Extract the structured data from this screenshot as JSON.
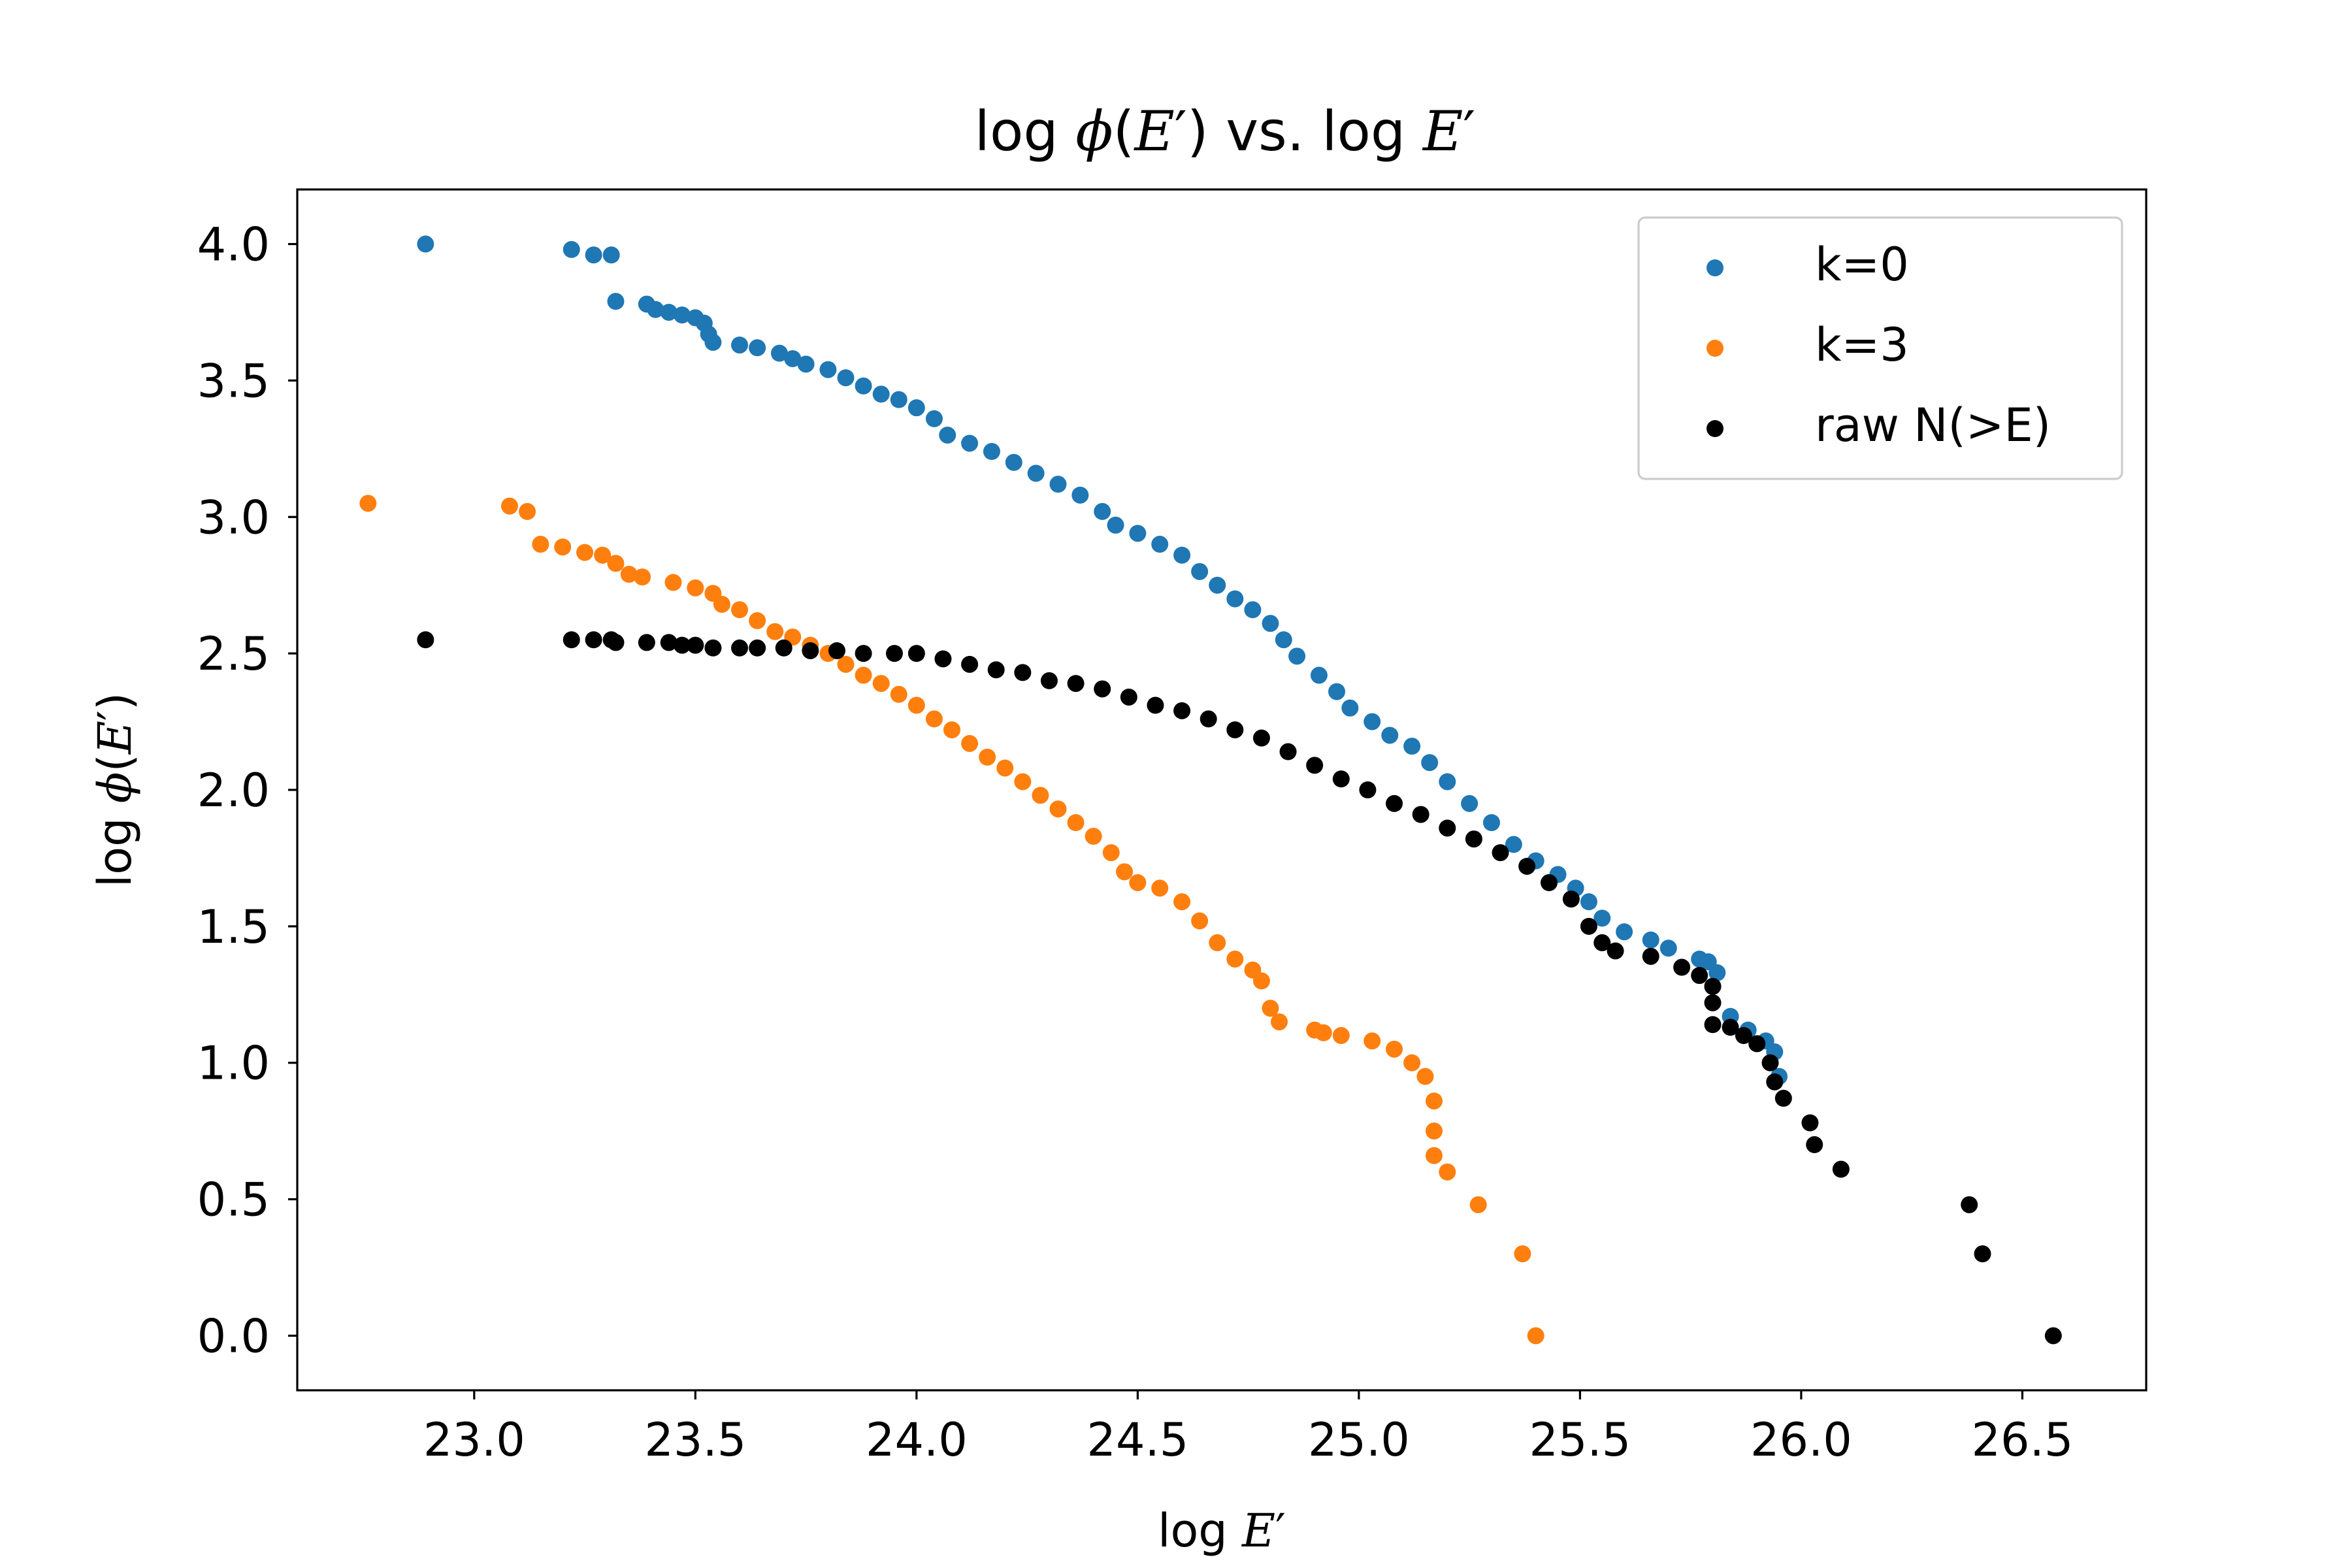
{
  "chart_data": {
    "type": "scatter",
    "title": "log ϕ(E′) vs. log E′",
    "title_parts": {
      "pre": "log ",
      "func": "ϕ",
      "open": "(",
      "var": "E",
      "prime": "′",
      "close": ")",
      "mid": " vs. log ",
      "var2": "E",
      "prime2": "′"
    },
    "xlabel": "log E′",
    "xlabel_parts": {
      "pre": "log ",
      "var": "E",
      "prime": "′"
    },
    "ylabel": "log ϕ(E′)",
    "ylabel_parts": {
      "pre": "log ",
      "func": "ϕ",
      "open": "(",
      "var": "E",
      "prime": "′",
      "close": ")"
    },
    "xlim": [
      22.6,
      26.78
    ],
    "ylim": [
      -0.2,
      4.2
    ],
    "xticks": [
      23.0,
      23.5,
      24.0,
      24.5,
      25.0,
      25.5,
      26.0,
      26.5
    ],
    "xtick_labels": [
      "23.0",
      "23.5",
      "24.0",
      "24.5",
      "25.0",
      "25.5",
      "26.0",
      "26.5"
    ],
    "yticks": [
      0.0,
      0.5,
      1.0,
      1.5,
      2.0,
      2.5,
      3.0,
      3.5,
      4.0
    ],
    "ytick_labels": [
      "0.0",
      "0.5",
      "1.0",
      "1.5",
      "2.0",
      "2.5",
      "3.0",
      "3.5",
      "4.0"
    ],
    "grid": false,
    "legend_position": "top-right",
    "series": [
      {
        "name": "k=0",
        "color": "#1f77b4",
        "points": [
          [
            22.89,
            4.0
          ],
          [
            23.22,
            3.98
          ],
          [
            23.27,
            3.96
          ],
          [
            23.31,
            3.96
          ],
          [
            23.32,
            3.79
          ],
          [
            23.39,
            3.78
          ],
          [
            23.41,
            3.76
          ],
          [
            23.44,
            3.75
          ],
          [
            23.47,
            3.74
          ],
          [
            23.5,
            3.73
          ],
          [
            23.52,
            3.71
          ],
          [
            23.53,
            3.67
          ],
          [
            23.54,
            3.64
          ],
          [
            23.6,
            3.63
          ],
          [
            23.64,
            3.62
          ],
          [
            23.69,
            3.6
          ],
          [
            23.72,
            3.58
          ],
          [
            23.75,
            3.56
          ],
          [
            23.8,
            3.54
          ],
          [
            23.84,
            3.51
          ],
          [
            23.88,
            3.48
          ],
          [
            23.92,
            3.45
          ],
          [
            23.96,
            3.43
          ],
          [
            24.0,
            3.4
          ],
          [
            24.04,
            3.36
          ],
          [
            24.07,
            3.3
          ],
          [
            24.12,
            3.27
          ],
          [
            24.17,
            3.24
          ],
          [
            24.22,
            3.2
          ],
          [
            24.27,
            3.16
          ],
          [
            24.32,
            3.12
          ],
          [
            24.37,
            3.08
          ],
          [
            24.42,
            3.02
          ],
          [
            24.45,
            2.97
          ],
          [
            24.5,
            2.94
          ],
          [
            24.55,
            2.9
          ],
          [
            24.6,
            2.86
          ],
          [
            24.64,
            2.8
          ],
          [
            24.68,
            2.75
          ],
          [
            24.72,
            2.7
          ],
          [
            24.76,
            2.66
          ],
          [
            24.8,
            2.61
          ],
          [
            24.83,
            2.55
          ],
          [
            24.86,
            2.49
          ],
          [
            24.91,
            2.42
          ],
          [
            24.95,
            2.36
          ],
          [
            24.98,
            2.3
          ],
          [
            25.03,
            2.25
          ],
          [
            25.07,
            2.2
          ],
          [
            25.12,
            2.16
          ],
          [
            25.16,
            2.1
          ],
          [
            25.2,
            2.03
          ],
          [
            25.25,
            1.95
          ],
          [
            25.3,
            1.88
          ],
          [
            25.35,
            1.8
          ],
          [
            25.4,
            1.74
          ],
          [
            25.45,
            1.69
          ],
          [
            25.49,
            1.64
          ],
          [
            25.52,
            1.59
          ],
          [
            25.55,
            1.53
          ],
          [
            25.6,
            1.48
          ],
          [
            25.66,
            1.45
          ],
          [
            25.7,
            1.42
          ],
          [
            25.77,
            1.38
          ],
          [
            25.79,
            1.37
          ],
          [
            25.81,
            1.33
          ],
          [
            25.8,
            1.28
          ],
          [
            25.84,
            1.17
          ],
          [
            25.88,
            1.12
          ],
          [
            25.92,
            1.08
          ],
          [
            25.94,
            1.04
          ],
          [
            25.95,
            0.95
          ]
        ]
      },
      {
        "name": "k=3",
        "color": "#ff7f0e",
        "points": [
          [
            22.76,
            3.05
          ],
          [
            23.08,
            3.04
          ],
          [
            23.12,
            3.02
          ],
          [
            23.15,
            2.9
          ],
          [
            23.2,
            2.89
          ],
          [
            23.25,
            2.87
          ],
          [
            23.29,
            2.86
          ],
          [
            23.32,
            2.83
          ],
          [
            23.35,
            2.79
          ],
          [
            23.38,
            2.78
          ],
          [
            23.45,
            2.76
          ],
          [
            23.5,
            2.74
          ],
          [
            23.54,
            2.72
          ],
          [
            23.56,
            2.68
          ],
          [
            23.6,
            2.66
          ],
          [
            23.64,
            2.62
          ],
          [
            23.68,
            2.58
          ],
          [
            23.72,
            2.56
          ],
          [
            23.76,
            2.53
          ],
          [
            23.8,
            2.5
          ],
          [
            23.84,
            2.46
          ],
          [
            23.88,
            2.42
          ],
          [
            23.92,
            2.39
          ],
          [
            23.96,
            2.35
          ],
          [
            24.0,
            2.31
          ],
          [
            24.04,
            2.26
          ],
          [
            24.08,
            2.22
          ],
          [
            24.12,
            2.17
          ],
          [
            24.16,
            2.12
          ],
          [
            24.2,
            2.08
          ],
          [
            24.24,
            2.03
          ],
          [
            24.28,
            1.98
          ],
          [
            24.32,
            1.93
          ],
          [
            24.36,
            1.88
          ],
          [
            24.4,
            1.83
          ],
          [
            24.44,
            1.77
          ],
          [
            24.47,
            1.7
          ],
          [
            24.5,
            1.66
          ],
          [
            24.55,
            1.64
          ],
          [
            24.6,
            1.59
          ],
          [
            24.64,
            1.52
          ],
          [
            24.68,
            1.44
          ],
          [
            24.72,
            1.38
          ],
          [
            24.76,
            1.34
          ],
          [
            24.78,
            1.3
          ],
          [
            24.8,
            1.2
          ],
          [
            24.82,
            1.15
          ],
          [
            24.9,
            1.12
          ],
          [
            24.92,
            1.11
          ],
          [
            24.96,
            1.1
          ],
          [
            25.03,
            1.08
          ],
          [
            25.08,
            1.05
          ],
          [
            25.12,
            1.0
          ],
          [
            25.15,
            0.95
          ],
          [
            25.17,
            0.86
          ],
          [
            25.17,
            0.75
          ],
          [
            25.17,
            0.66
          ],
          [
            25.2,
            0.6
          ],
          [
            25.27,
            0.48
          ],
          [
            25.37,
            0.3
          ],
          [
            25.4,
            0.0
          ]
        ]
      },
      {
        "name": "raw N(>E)",
        "color": "#000000",
        "points": [
          [
            22.89,
            2.55
          ],
          [
            23.22,
            2.55
          ],
          [
            23.27,
            2.55
          ],
          [
            23.31,
            2.55
          ],
          [
            23.32,
            2.54
          ],
          [
            23.39,
            2.54
          ],
          [
            23.44,
            2.54
          ],
          [
            23.47,
            2.53
          ],
          [
            23.5,
            2.53
          ],
          [
            23.54,
            2.52
          ],
          [
            23.6,
            2.52
          ],
          [
            23.64,
            2.52
          ],
          [
            23.7,
            2.52
          ],
          [
            23.76,
            2.51
          ],
          [
            23.82,
            2.51
          ],
          [
            23.88,
            2.5
          ],
          [
            23.95,
            2.5
          ],
          [
            24.0,
            2.5
          ],
          [
            24.06,
            2.48
          ],
          [
            24.12,
            2.46
          ],
          [
            24.18,
            2.44
          ],
          [
            24.24,
            2.43
          ],
          [
            24.3,
            2.4
          ],
          [
            24.36,
            2.39
          ],
          [
            24.42,
            2.37
          ],
          [
            24.48,
            2.34
          ],
          [
            24.54,
            2.31
          ],
          [
            24.6,
            2.29
          ],
          [
            24.66,
            2.26
          ],
          [
            24.72,
            2.22
          ],
          [
            24.78,
            2.19
          ],
          [
            24.84,
            2.14
          ],
          [
            24.9,
            2.09
          ],
          [
            24.96,
            2.04
          ],
          [
            25.02,
            2.0
          ],
          [
            25.08,
            1.95
          ],
          [
            25.14,
            1.91
          ],
          [
            25.2,
            1.86
          ],
          [
            25.26,
            1.82
          ],
          [
            25.32,
            1.77
          ],
          [
            25.38,
            1.72
          ],
          [
            25.43,
            1.66
          ],
          [
            25.48,
            1.6
          ],
          [
            25.52,
            1.5
          ],
          [
            25.55,
            1.44
          ],
          [
            25.58,
            1.41
          ],
          [
            25.66,
            1.39
          ],
          [
            25.73,
            1.35
          ],
          [
            25.77,
            1.32
          ],
          [
            25.8,
            1.28
          ],
          [
            25.8,
            1.22
          ],
          [
            25.8,
            1.14
          ],
          [
            25.84,
            1.13
          ],
          [
            25.87,
            1.1
          ],
          [
            25.9,
            1.07
          ],
          [
            25.93,
            1.0
          ],
          [
            25.94,
            0.93
          ],
          [
            25.96,
            0.87
          ],
          [
            26.02,
            0.78
          ],
          [
            26.03,
            0.7
          ],
          [
            26.09,
            0.61
          ],
          [
            26.38,
            0.48
          ],
          [
            26.41,
            0.3
          ],
          [
            26.57,
            0.0
          ]
        ]
      }
    ]
  }
}
